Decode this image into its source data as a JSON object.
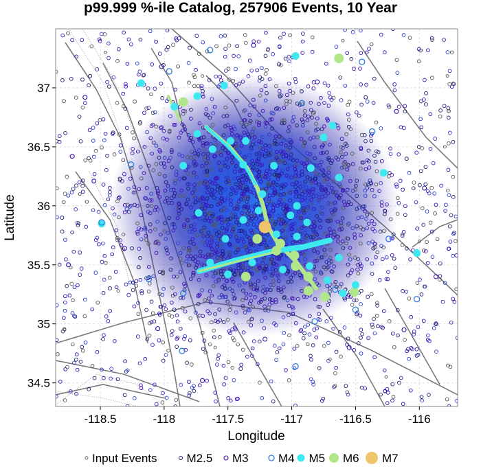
{
  "chart_data": {
    "type": "scatter",
    "title": "p99.999 %-ile Catalog, 257906 Events, 10 Year",
    "xlabel": "Longitude",
    "ylabel": "Latitude",
    "xlim": [
      -118.85,
      -115.7
    ],
    "ylim": [
      34.3,
      37.5
    ],
    "x_ticks": [
      -118.5,
      -118,
      -117.5,
      -117,
      -116.5,
      -116
    ],
    "y_ticks": [
      34.5,
      35,
      35.5,
      36,
      36.5,
      37
    ],
    "grid": true,
    "legend_placement": "bottom",
    "legend": [
      "Input Events",
      "M2.5",
      "M3",
      "M4",
      "M5",
      "M6",
      "M7"
    ],
    "colors": {
      "input": "#555555",
      "m25": "#1b1f70",
      "m3": "#3a0fb0",
      "m4": "#2a7be0",
      "m5": "#3ee8f0",
      "m6": "#b2e68a",
      "m7": "#f0c46a",
      "fault": "#7a7a7a"
    },
    "series": [
      {
        "name": "M7",
        "points": [
          [
            -117.21,
            35.82
          ]
        ]
      },
      {
        "name": "M6",
        "points": [
          [
            -117.85,
            36.88
          ],
          [
            -116.63,
            37.25
          ],
          [
            -116.51,
            35.27
          ],
          [
            -116.98,
            35.58
          ],
          [
            -117.12,
            35.62
          ],
          [
            -117.27,
            35.72
          ],
          [
            -116.97,
            35.49
          ],
          [
            -116.87,
            35.28
          ],
          [
            -117.36,
            35.4
          ],
          [
            -116.74,
            35.23
          ],
          [
            -116.87,
            35.4
          ],
          [
            -117.09,
            35.68
          ]
        ]
      },
      {
        "name": "M5",
        "points": [
          [
            -118.18,
            37.04
          ],
          [
            -116.97,
            37.27
          ],
          [
            -117.53,
            37.02
          ],
          [
            -117.74,
            36.93
          ],
          [
            -116.68,
            36.68
          ],
          [
            -116.75,
            36.58
          ],
          [
            -116.28,
            36.28
          ],
          [
            -117.85,
            36.34
          ],
          [
            -116.85,
            36.32
          ],
          [
            -116.63,
            36.24
          ],
          [
            -118.49,
            35.85
          ],
          [
            -116.02,
            35.6
          ],
          [
            -117.73,
            35.94
          ],
          [
            -116.5,
            35.33
          ],
          [
            -117.48,
            36.55
          ],
          [
            -117.36,
            36.55
          ],
          [
            -117.62,
            36.48
          ],
          [
            -117.38,
            36.35
          ],
          [
            -117.14,
            36.34
          ],
          [
            -117.23,
            36.1
          ],
          [
            -116.96,
            36.0
          ],
          [
            -117.26,
            35.96
          ],
          [
            -117.38,
            35.88
          ],
          [
            -117.01,
            35.92
          ],
          [
            -116.88,
            35.86
          ],
          [
            -117.52,
            35.72
          ],
          [
            -117.12,
            35.76
          ],
          [
            -116.96,
            35.74
          ],
          [
            -117.64,
            35.52
          ],
          [
            -117.31,
            35.52
          ],
          [
            -117.07,
            35.46
          ],
          [
            -116.86,
            35.49
          ],
          [
            -116.63,
            35.56
          ],
          [
            -117.5,
            35.42
          ],
          [
            -116.72,
            35.37
          ],
          [
            -116.6,
            35.26
          ],
          [
            -117.74,
            36.61
          ],
          [
            -117.92,
            36.84
          ]
        ]
      },
      {
        "name": "M4",
        "points": [
          [
            -118.49,
            35.86
          ],
          [
            -116.66,
            35.29
          ],
          [
            -116.02,
            35.21
          ],
          [
            -116.5,
            35.12
          ],
          [
            -117.86,
            34.77
          ],
          [
            -116.97,
            34.64
          ],
          [
            -116.82,
            35.02
          ],
          [
            -116.37,
            36.63
          ],
          [
            -116.45,
            37.22
          ],
          [
            -117.96,
            37.14
          ],
          [
            -118.26,
            36.35
          ],
          [
            -117.64,
            37.32
          ],
          [
            -117.85,
            35.26
          ],
          [
            -118.12,
            35.38
          ],
          [
            -116.92,
            36.87
          ],
          [
            -116.24,
            35.72
          ]
        ]
      },
      {
        "name": "M3",
        "points": [
          [
            -118.72,
            36.42
          ],
          [
            -118.55,
            36.21
          ],
          [
            -118.31,
            35.64
          ],
          [
            -118.05,
            34.96
          ],
          [
            -117.7,
            34.52
          ],
          [
            -117.21,
            34.87
          ],
          [
            -116.55,
            34.8
          ],
          [
            -116.12,
            34.95
          ],
          [
            -115.87,
            35.4
          ],
          [
            -115.96,
            36.15
          ],
          [
            -116.18,
            36.8
          ],
          [
            -116.8,
            37.05
          ],
          [
            -117.3,
            37.36
          ],
          [
            -118.02,
            37.18
          ],
          [
            -118.62,
            36.92
          ],
          [
            -118.75,
            35.5
          ]
        ]
      },
      {
        "name": "M2.5",
        "points": [
          [
            -118.4,
            36.62
          ],
          [
            -118.2,
            35.48
          ],
          [
            -117.92,
            35.12
          ],
          [
            -117.4,
            34.62
          ],
          [
            -116.9,
            34.92
          ],
          [
            -116.36,
            35.64
          ],
          [
            -116.1,
            36.4
          ],
          [
            -116.42,
            36.92
          ],
          [
            -117.1,
            37.2
          ],
          [
            -117.8,
            37.34
          ],
          [
            -118.58,
            37.1
          ],
          [
            -118.8,
            35.9
          ]
        ]
      },
      {
        "name": "Input Events",
        "points": [
          [
            -118.66,
            36.1
          ],
          [
            -118.36,
            35.28
          ],
          [
            -117.6,
            34.8
          ],
          [
            -116.7,
            34.7
          ],
          [
            -116.0,
            35.7
          ],
          [
            -115.8,
            36.5
          ],
          [
            -116.6,
            37.4
          ],
          [
            -117.7,
            37.1
          ],
          [
            -118.46,
            37.3
          ],
          [
            -118.78,
            34.95
          ],
          [
            -116.26,
            34.55
          ],
          [
            -115.78,
            37.1
          ]
        ]
      }
    ]
  }
}
